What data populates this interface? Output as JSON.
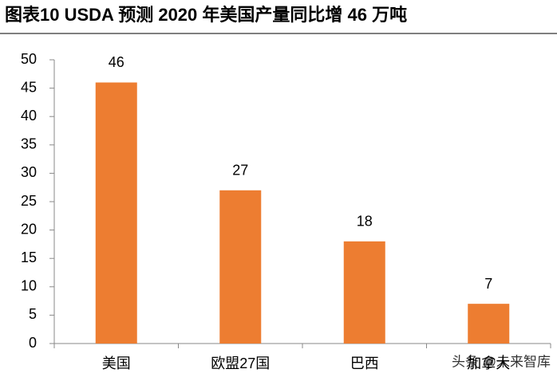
{
  "chart_data": {
    "type": "bar",
    "title": "图表10   USDA 预测 2020 年美国产量同比增 46 万吨",
    "categories": [
      "美国",
      "欧盟27国",
      "巴西",
      "加拿大"
    ],
    "values": [
      46,
      27,
      18,
      7
    ],
    "color": "#ed7d31",
    "ylim": [
      0,
      50
    ],
    "yticks": [
      0,
      5,
      10,
      15,
      20,
      25,
      30,
      35,
      40,
      45,
      50
    ],
    "grid": false,
    "watermark": "头条 @未来智库"
  }
}
